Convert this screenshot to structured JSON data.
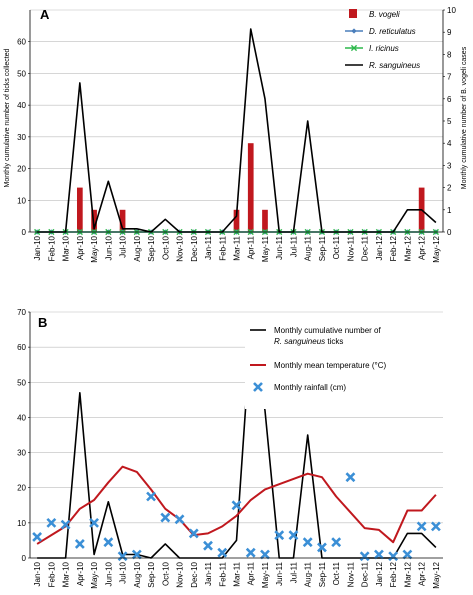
{
  "chart_data": [
    {
      "panel": "A",
      "type": "line+bar",
      "categories": [
        "Jan-10",
        "Feb-10",
        "Mar-10",
        "Apr-10",
        "May-10",
        "Jun-10",
        "Jul-10",
        "Aug-10",
        "Sep-10",
        "Oct-10",
        "Nov-10",
        "Dec-10",
        "Jan-11",
        "Feb-11",
        "Mar-11",
        "Apr-11",
        "May-11",
        "Jun-11",
        "Jul-11",
        "Aug-11",
        "Sep-11",
        "Oct-11",
        "Nov-11",
        "Dec-11",
        "Jan-12",
        "Feb-12",
        "Mar-12",
        "Apr-12",
        "May-12"
      ],
      "ylabel": "Monthly cumulative number of  ticks collected",
      "y2label": "Monthly cumulative number of B. vogeli cases",
      "ylim": [
        0,
        70
      ],
      "yticks": [
        0,
        10,
        20,
        30,
        40,
        50,
        60
      ],
      "y2lim": [
        0,
        10
      ],
      "y2ticks": [
        0,
        1,
        2,
        3,
        4,
        5,
        6,
        7,
        8,
        9,
        10
      ],
      "grid": "horizontal",
      "legend_position": "top-right",
      "series": [
        {
          "name": "B. vogeli",
          "kind": "bar",
          "axis": "right",
          "color": "#c0181e",
          "values": [
            0,
            0,
            0,
            2,
            1,
            0,
            1,
            0,
            0,
            0,
            0,
            0,
            0,
            0,
            1,
            4,
            1,
            0,
            0,
            0,
            0,
            0,
            0,
            0,
            0,
            0,
            0,
            2,
            0
          ]
        },
        {
          "name": "D. reticulatus",
          "kind": "line",
          "marker": "diamond",
          "axis": "left",
          "color": "#4a7ebb",
          "values": [
            0,
            0,
            0,
            0,
            0,
            0,
            0,
            0,
            0,
            0,
            0,
            0,
            0,
            0,
            0,
            0,
            0,
            0,
            0,
            0,
            0,
            0,
            0,
            0,
            0,
            0,
            0,
            0,
            0
          ]
        },
        {
          "name": "I. ricinus",
          "kind": "line",
          "marker": "x",
          "axis": "left",
          "color": "#2db84b",
          "values": [
            0,
            0,
            0,
            0,
            0,
            0,
            0,
            0,
            0,
            0,
            0,
            0,
            0,
            0,
            0,
            0,
            0,
            0,
            0,
            0,
            0,
            0,
            0,
            0,
            0,
            0,
            0,
            0,
            0
          ]
        },
        {
          "name": "R. sanguineus",
          "kind": "line",
          "axis": "left",
          "color": "#000000",
          "values": [
            0,
            0,
            0,
            47,
            1,
            16,
            1,
            1,
            0,
            4,
            0,
            0,
            0,
            0,
            5,
            64,
            42,
            0,
            0,
            35,
            0,
            0,
            0,
            0,
            0,
            0,
            7,
            7,
            3
          ]
        }
      ]
    },
    {
      "panel": "B",
      "type": "line+scatter",
      "categories": [
        "Jan-10",
        "Feb-10",
        "Mar-10",
        "Apr-10",
        "May-10",
        "Jun-10",
        "Jul-10",
        "Aug-10",
        "Sep-10",
        "Oct-10",
        "Nov-10",
        "Dec-10",
        "Jan-11",
        "Feb-11",
        "Mar-11",
        "Apr-11",
        "May-11",
        "Jun-11",
        "Jul-11",
        "Aug-11",
        "Sep-11",
        "Oct-11",
        "Nov-11",
        "Dec-11",
        "Jan-12",
        "Feb-12",
        "Mar-12",
        "Apr-12",
        "May-12"
      ],
      "ylim": [
        0,
        70
      ],
      "yticks": [
        0,
        10,
        20,
        30,
        40,
        50,
        60,
        70
      ],
      "grid": "horizontal",
      "legend_position": "top-right",
      "series": [
        {
          "name": "Monthly cumulative number of",
          "name_line2": "R. sanguineus",
          "name_line2_suffix": " ticks",
          "kind": "line",
          "color": "#000000",
          "values": [
            0,
            0,
            0,
            47,
            1,
            16,
            1,
            1,
            0,
            4,
            0,
            0,
            0,
            0,
            5,
            64,
            42,
            0,
            0,
            35,
            0,
            0,
            0,
            0,
            0,
            0,
            7,
            7,
            3
          ]
        },
        {
          "name": "Monthly mean temperature (°C)",
          "kind": "line",
          "color": "#c0181e",
          "values": [
            4,
            6.5,
            9,
            14,
            16.5,
            21.5,
            26,
            24.5,
            19.5,
            14,
            11,
            6.5,
            7,
            9,
            12,
            16.5,
            19.5,
            21,
            22.5,
            24,
            23,
            17.5,
            13,
            8.5,
            8,
            4.5,
            13.5,
            13.5,
            18
          ]
        },
        {
          "name": "Monthly rainfall (cm)",
          "kind": "scatter",
          "marker": "x",
          "color": "#3b8fd6",
          "values": [
            6,
            10,
            9.5,
            4,
            10,
            4.5,
            0.5,
            1,
            17.5,
            11.5,
            11,
            7,
            3.5,
            1.5,
            15,
            1.5,
            1,
            6.5,
            6.5,
            4.5,
            3,
            4.5,
            23,
            0.5,
            1,
            0.5,
            1,
            9,
            9
          ]
        }
      ]
    }
  ],
  "panel_labels": {
    "a": "A",
    "b": "B"
  }
}
